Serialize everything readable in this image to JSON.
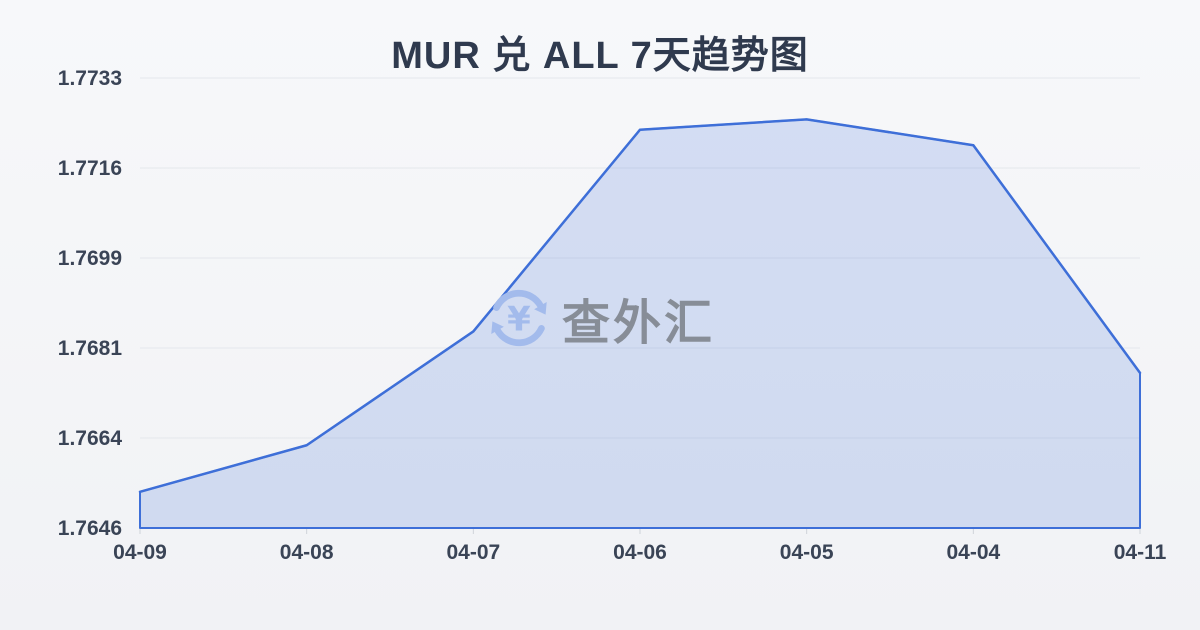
{
  "title": "MUR 兑 ALL 7天趋势图",
  "watermark": {
    "text": "查外汇",
    "icon": "currency-refresh-icon",
    "icon_symbol": "¥"
  },
  "colors": {
    "line": "#3e6fd8",
    "fill": "rgba(63,110,217,0.19)",
    "grid": "#e4e7ec",
    "tick": "#cfd3d9",
    "title_text": "#2f3a4e",
    "axis_text": "#3a4456",
    "watermark_text": "#878d97",
    "watermark_icon": "#a3bbec",
    "background_top": "#f7f8fa",
    "background_bottom": "#f1f2f5"
  },
  "chart_data": {
    "type": "area",
    "title": "MUR 兑 ALL 7天趋势图",
    "x": [
      "04-09",
      "04-08",
      "04-07",
      "04-06",
      "04-05",
      "04-04",
      "04-11"
    ],
    "values": [
      1.7653,
      1.7662,
      1.7684,
      1.7723,
      1.7725,
      1.772,
      1.7676
    ],
    "xlabel": "",
    "ylabel": "",
    "ylim": [
      1.7646,
      1.7733
    ],
    "y_tick_labels": [
      "1.7646",
      "1.7664",
      "1.7681",
      "1.7699",
      "1.7716",
      "1.7733"
    ],
    "grid": true,
    "legend": false
  }
}
